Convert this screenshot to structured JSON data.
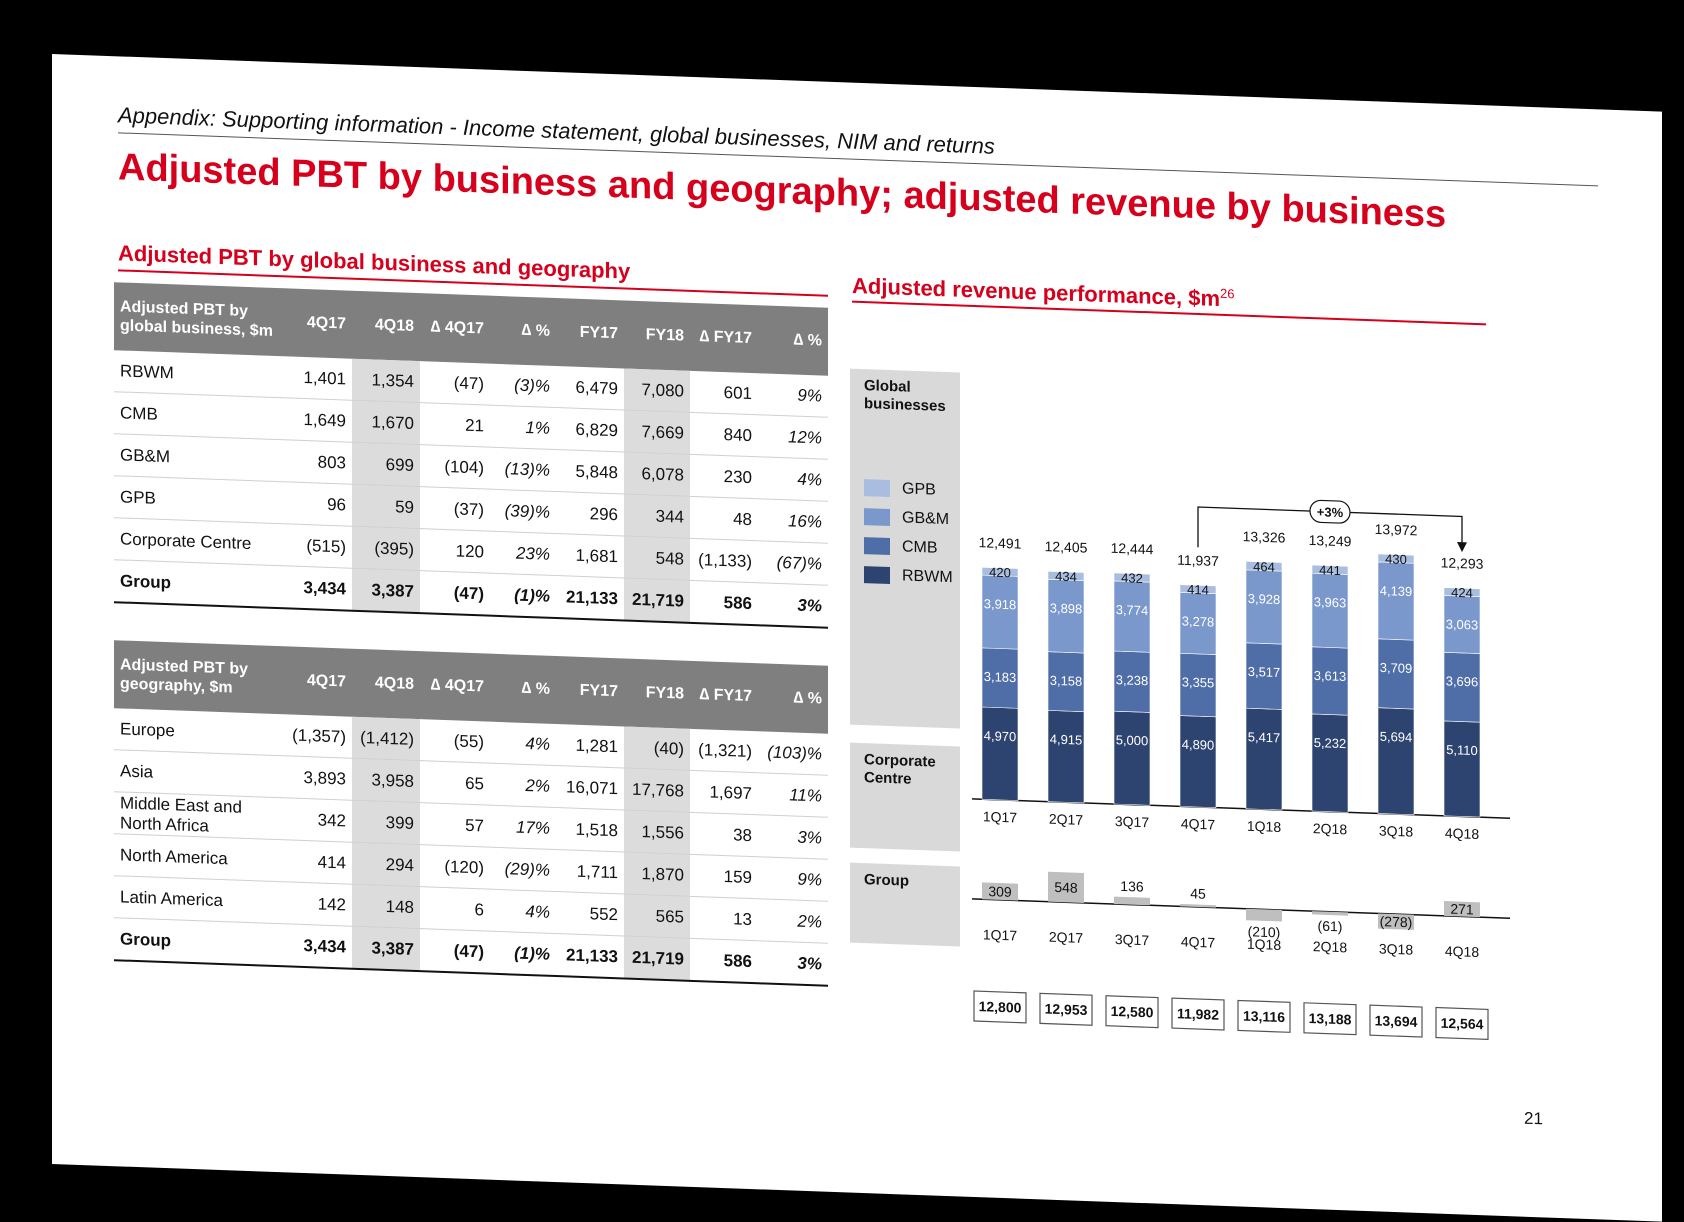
{
  "header": {
    "appendix": "Appendix: Supporting information - Income statement, global businesses, NIM and returns",
    "title": "Adjusted PBT by business and geography; adjusted revenue by business"
  },
  "left": {
    "title": "Adjusted PBT by global business and geography",
    "table1": {
      "header_first": "Adjusted PBT by global business, $m",
      "columns": [
        "4Q17",
        "4Q18",
        "∆ 4Q17",
        "∆ %",
        "FY17",
        "FY18",
        "∆ FY17",
        "∆ %"
      ],
      "rows": [
        [
          "RBWM",
          "1,401",
          "1,354",
          "(47)",
          "(3)%",
          "6,479",
          "7,080",
          "601",
          "9%"
        ],
        [
          "CMB",
          "1,649",
          "1,670",
          "21",
          "1%",
          "6,829",
          "7,669",
          "840",
          "12%"
        ],
        [
          "GB&M",
          "803",
          "699",
          "(104)",
          "(13)%",
          "5,848",
          "6,078",
          "230",
          "4%"
        ],
        [
          "GPB",
          "96",
          "59",
          "(37)",
          "(39)%",
          "296",
          "344",
          "48",
          "16%"
        ],
        [
          "Corporate Centre",
          "(515)",
          "(395)",
          "120",
          "23%",
          "1,681",
          "548",
          "(1,133)",
          "(67)%"
        ],
        [
          "Group",
          "3,434",
          "3,387",
          "(47)",
          "(1)%",
          "21,133",
          "21,719",
          "586",
          "3%"
        ]
      ]
    },
    "table2": {
      "header_first": "Adjusted PBT by geography, $m",
      "columns": [
        "4Q17",
        "4Q18",
        "∆ 4Q17",
        "∆ %",
        "FY17",
        "FY18",
        "∆ FY17",
        "∆ %"
      ],
      "rows": [
        [
          "Europe",
          "(1,357)",
          "(1,412)",
          "(55)",
          "4%",
          "1,281",
          "(40)",
          "(1,321)",
          "(103)%"
        ],
        [
          "Asia",
          "3,893",
          "3,958",
          "65",
          "2%",
          "16,071",
          "17,768",
          "1,697",
          "11%"
        ],
        [
          "Middle East and North Africa",
          "342",
          "399",
          "57",
          "17%",
          "1,518",
          "1,556",
          "38",
          "3%"
        ],
        [
          "North America",
          "414",
          "294",
          "(120)",
          "(29)%",
          "1,711",
          "1,870",
          "159",
          "9%"
        ],
        [
          "Latin America",
          "142",
          "148",
          "6",
          "4%",
          "552",
          "565",
          "13",
          "2%"
        ],
        [
          "Group",
          "3,434",
          "3,387",
          "(47)",
          "(1)%",
          "21,133",
          "21,719",
          "586",
          "3%"
        ]
      ]
    }
  },
  "right": {
    "title": "Adjusted revenue performance, $m",
    "title_sup": "26",
    "label_global": "Global businesses",
    "label_corporate": "Corporate Centre",
    "label_group": "Group",
    "legend": [
      {
        "name": "GPB",
        "color": "#a9bde0"
      },
      {
        "name": "GB&M",
        "color": "#7b98cc"
      },
      {
        "name": "CMB",
        "color": "#4f6ea8"
      },
      {
        "name": "RBWM",
        "color": "#2e4470"
      }
    ],
    "growth_label": "+3%"
  },
  "chart_data": [
    {
      "type": "bar",
      "stacked": true,
      "categories": [
        "1Q17",
        "2Q17",
        "3Q17",
        "4Q17",
        "1Q18",
        "2Q18",
        "3Q18",
        "4Q18"
      ],
      "series": [
        {
          "name": "RBWM",
          "values": [
            4970,
            4915,
            5000,
            4890,
            5417,
            5232,
            5694,
            5110
          ]
        },
        {
          "name": "CMB",
          "values": [
            3183,
            3158,
            3238,
            3355,
            3517,
            3613,
            3709,
            3696
          ]
        },
        {
          "name": "GB&M",
          "values": [
            3918,
            3898,
            3774,
            3278,
            3928,
            3963,
            4139,
            3063
          ]
        },
        {
          "name": "GPB",
          "values": [
            420,
            434,
            432,
            414,
            464,
            441,
            430,
            424
          ]
        }
      ],
      "value_labels": {
        "RBWM": [
          "4,970",
          "4,915",
          "5,000",
          "4,890",
          "5,417",
          "5,232",
          "5,694",
          "5,110"
        ],
        "CMB": [
          "3,183",
          "3,158",
          "3,238",
          "3,355",
          "3,517",
          "3,613",
          "3,709",
          "3,696"
        ],
        "GB&M": [
          "3,918",
          "3,898",
          "3,774",
          "3,278",
          "3,928",
          "3,963",
          "4,139",
          "3,063"
        ],
        "GPB": [
          "420",
          "434",
          "432",
          "414",
          "464",
          "441",
          "430",
          "424"
        ]
      },
      "totals": [
        "12,491",
        "12,405",
        "12,444",
        "11,937",
        "13,326",
        "13,249",
        "13,972",
        "12,293"
      ]
    },
    {
      "type": "bar",
      "categories": [
        "1Q17",
        "2Q17",
        "3Q17",
        "4Q17",
        "1Q18",
        "2Q18",
        "3Q18",
        "4Q18"
      ],
      "series": [
        {
          "name": "Corporate Centre",
          "values": [
            309,
            548,
            136,
            45,
            -210,
            -61,
            -278,
            271
          ]
        }
      ],
      "value_labels": [
        "309",
        "548",
        "136",
        "45",
        "(210)",
        "(61)",
        "(278)",
        "271"
      ]
    },
    {
      "type": "table",
      "categories": [
        "1Q17",
        "2Q17",
        "3Q17",
        "4Q17",
        "1Q18",
        "2Q18",
        "3Q18",
        "4Q18"
      ],
      "values": [
        "12,800",
        "12,953",
        "12,580",
        "11,982",
        "13,116",
        "13,188",
        "13,694",
        "12,564"
      ]
    }
  ],
  "page_number": "21"
}
